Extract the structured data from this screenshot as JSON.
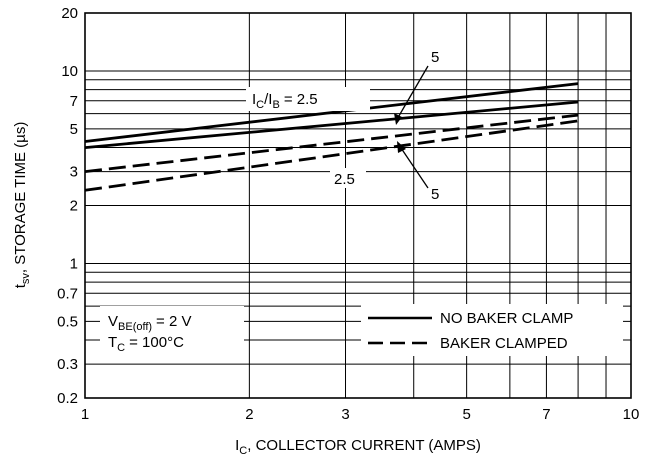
{
  "chart_data": {
    "type": "line",
    "xscale": "log",
    "yscale": "log",
    "xlim": [
      1,
      10
    ],
    "ylim": [
      0.2,
      20
    ],
    "grid": true,
    "xlabel": {
      "main": "I",
      "sub": "C",
      "rest": ", COLLECTOR CURRENT (AMPS)"
    },
    "ylabel": {
      "main": "t",
      "sub": "sv",
      "rest": ", STORAGE TIME (µs)"
    },
    "x_ticks": [
      1,
      2,
      3,
      5,
      7,
      10
    ],
    "y_ticks": [
      0.2,
      0.3,
      0.5,
      0.7,
      1,
      2,
      3,
      5,
      7,
      10,
      20
    ],
    "x_tick_labels": [
      "1",
      "2",
      "3",
      "5",
      "7",
      "10"
    ],
    "y_tick_labels": [
      "0.2",
      "0.3",
      "0.5",
      "0.7",
      "1",
      "2",
      "3",
      "5",
      "7",
      "10",
      "20"
    ],
    "series": [
      {
        "name": "NO BAKER CLAMP",
        "label": "2.5",
        "style": "solid",
        "x": [
          1,
          8
        ],
        "y": [
          4.3,
          8.6
        ]
      },
      {
        "name": "NO BAKER CLAMP",
        "label": "5",
        "style": "solid",
        "x": [
          1,
          8
        ],
        "y": [
          4.0,
          6.9
        ]
      },
      {
        "name": "BAKER CLAMPED",
        "label": "2.5",
        "style": "dashed",
        "x": [
          1,
          8
        ],
        "y": [
          3.0,
          5.9
        ]
      },
      {
        "name": "BAKER CLAMPED",
        "label": "5",
        "style": "dashed",
        "x": [
          1,
          8
        ],
        "y": [
          2.4,
          5.5
        ]
      }
    ],
    "annotations": {
      "ratio_main": "I",
      "ratio_sub1": "C",
      "ratio_mid": "/I",
      "ratio_sub2": "B",
      "ratio_value": "= 2.5",
      "upper_five": "5",
      "lower_two_five": "2.5",
      "lower_five": "5",
      "cond1_main": "V",
      "cond1_sub": "BE(off)",
      "cond1_value": "= 2 V",
      "cond2_main": "T",
      "cond2_sub": "C",
      "cond2_value": "= 100°C"
    },
    "legend": [
      {
        "label": "NO BAKER CLAMP",
        "style": "solid"
      },
      {
        "label": "BAKER CLAMPED",
        "style": "dashed"
      }
    ],
    "legend_position": "bottom-right",
    "line_color": "#000000"
  }
}
